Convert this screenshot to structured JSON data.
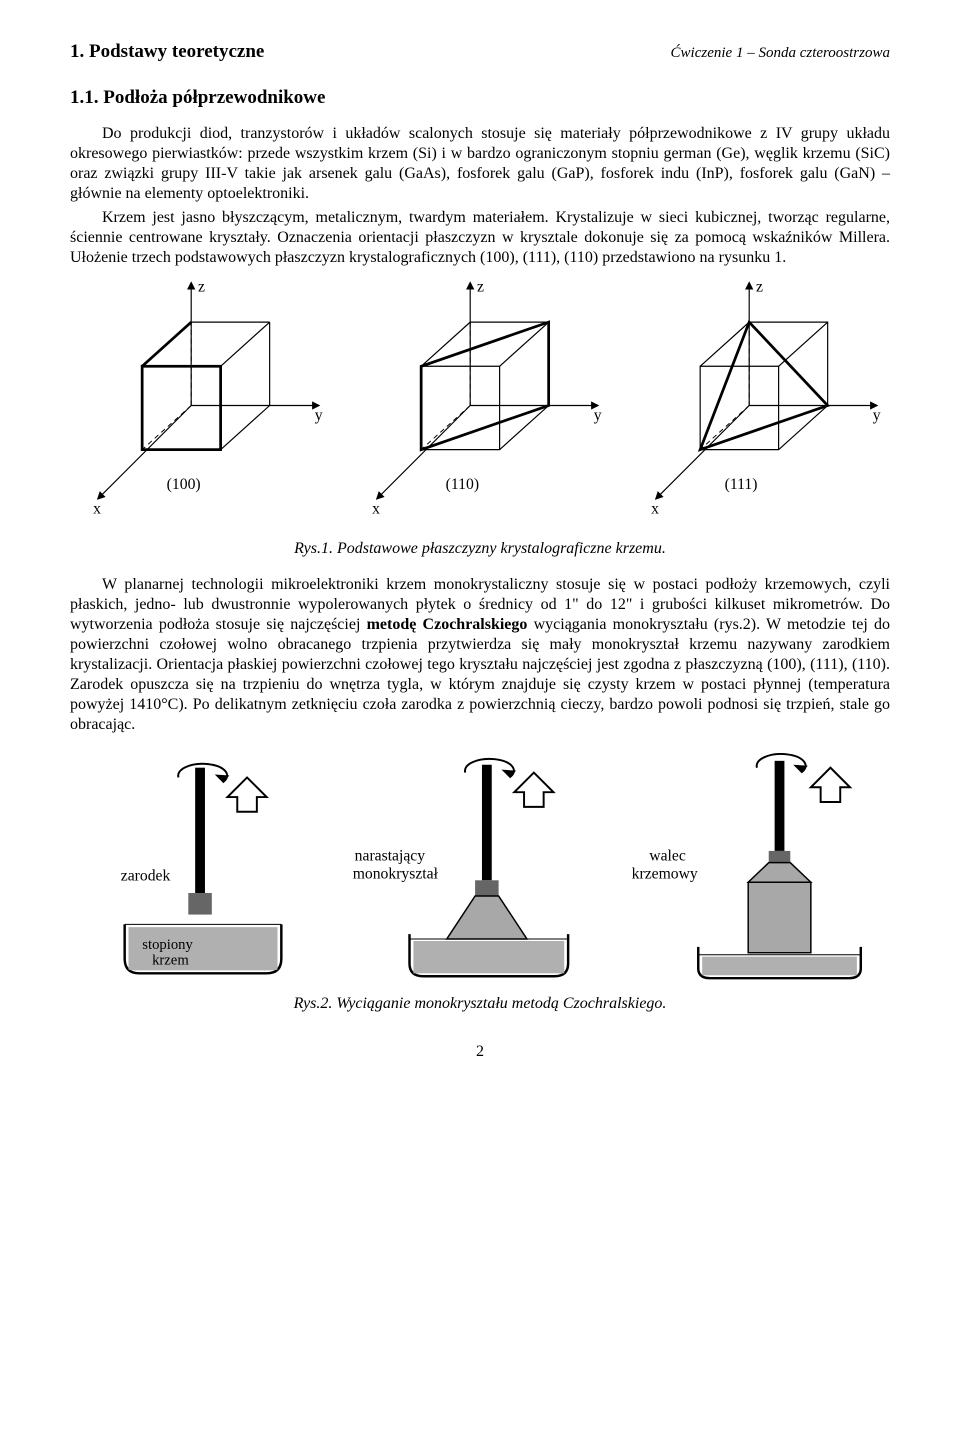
{
  "header": {
    "note": "Ćwiczenie 1 – Sonda czteroostrzowa"
  },
  "section1": {
    "num_title": "1. Podstawy teoretyczne"
  },
  "section11": {
    "num_title": "1.1. Podłoża półprzewodnikowe"
  },
  "para1": "Do produkcji diod, tranzystorów i układów scalonych stosuje się materiały półprzewodnikowe z IV grupy układu okresowego pierwiastków: przede wszystkim krzem (Si) i w bardzo ograniczonym stopniu german (Ge), węglik krzemu (SiC) oraz związki grupy III-V takie jak arsenek galu (GaAs), fosforek galu (GaP), fosforek indu (InP), fosforek galu (GaN) – głównie na elementy optoelektroniki.",
  "para2": "Krzem jest jasno błyszczącym, metalicznym, twardym materiałem. Krystalizuje w sieci kubicznej, tworząc regularne, ściennie centrowane kryształy. Oznaczenia orientacji płaszczyzn w krysztale dokonuje się za pomocą wskaźników Millera. Ułożenie trzech podstawowych płaszczyzn krystalograficznych (100), (111), (110) przedstawiono na rysunku 1.",
  "fig1": {
    "axis_x": "x",
    "axis_y": "y",
    "axis_z": "z",
    "label100": "(100)",
    "label110": "(110)",
    "label111": "(111)",
    "caption": "Rys.1. Podstawowe płaszczyzny krystalograficzne krzemu.",
    "colors": {
      "axis": "#000000",
      "dash": "#000000",
      "thick": "#000000",
      "thin": "#000000"
    },
    "stroke_thin": 1.2,
    "stroke_mid": 2.0,
    "stroke_thick": 2.8
  },
  "para3": "W planarnej technologii mikroelektroniki krzem monokrystaliczny stosuje się w postaci podłoży krzemowych, czyli płaskich, jedno- lub dwustronnie wypolerowanych płytek o średnicy od 1\" do 12\" i grubości kilkuset mikrometrów. Do wytworzenia podłoża stosuje się najczęściej metodę Czochralskiego wyciągania monokryształu (rys.2). W metodzie tej do powierzchni czołowej wolno obracanego trzpienia przytwierdza się mały monokryształ krzemu nazywany zarodkiem krystalizacji. Orientacja płaskiej powierzchni czołowej tego kryształu najczęściej jest zgodna z płaszczyzną (100), (111), (110). Zarodek opuszcza się na trzpieniu do wnętrza tygla, w którym znajduje się czysty krzem w postaci płynnej (temperatura powyżej 1410°C). Po delikatnym zetknięciu czoła zarodka z powierzchnią cieczy, bardzo powoli podnosi się trzpień, stale go obracając.",
  "para3_bold_phrase": "metodę Czochralskiego",
  "fig2": {
    "label_zarodek": "zarodek",
    "label_stopiony": "stopiony krzem",
    "label_narast": "narastający monokryształ",
    "label_walec": "walec krzemowy",
    "caption": "Rys.2. Wyciąganie monokryształu metodą Czochralskiego.",
    "colors": {
      "outline": "#000000",
      "rod": "#000000",
      "seed_fill": "#666666",
      "melt_fill": "#b0b0b0",
      "crucible_line": "#000000",
      "arrow_fill": "#ffffff",
      "arrow_line": "#000000",
      "crystal_fill": "#a8a8a8"
    },
    "stroke_w": 2
  },
  "page_number": "2"
}
